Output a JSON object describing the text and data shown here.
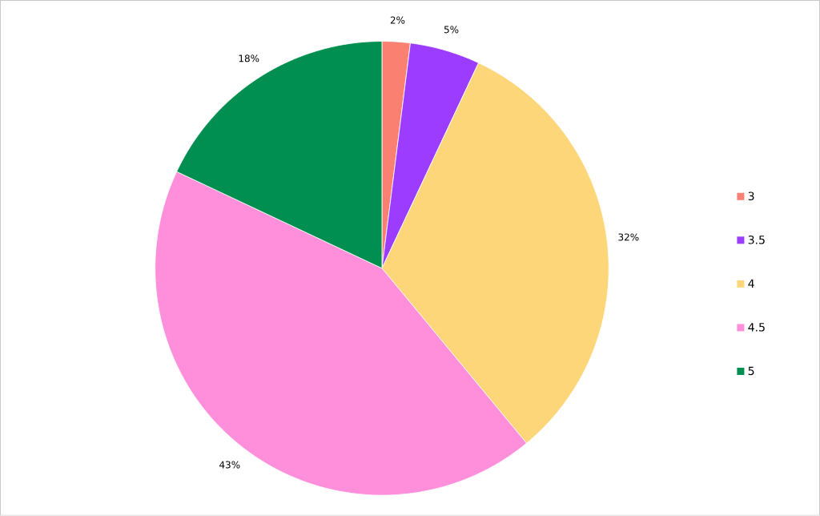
{
  "chart_data": {
    "type": "pie",
    "categories": [
      "3",
      "3.5",
      "4",
      "4.5",
      "5"
    ],
    "values": [
      2,
      5,
      32,
      43,
      18
    ],
    "colors": [
      "#fa8072",
      "#9b3cff",
      "#fed67a",
      "#ff8fda",
      "#008f50"
    ],
    "value_labels": [
      "2%",
      "5%",
      "32%",
      "43%",
      "18%"
    ],
    "legend": "right"
  }
}
